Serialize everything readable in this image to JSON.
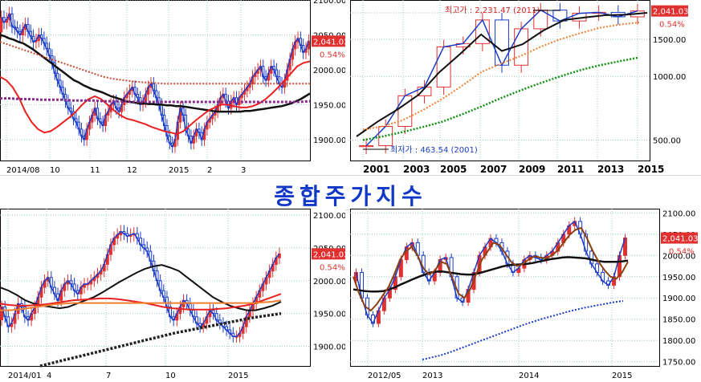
{
  "title": "종합주가지수",
  "colors": {
    "up": "#e03030",
    "down": "#1a3cc8",
    "grid": "#9ec9c9",
    "label_box": "#e03030",
    "label_text": "#ffffff",
    "pct_text": "#e03030",
    "ma_red": "#e82020",
    "ma_black": "#111111",
    "ma_orange": "#f08030",
    "ma_green": "#109010",
    "ma_purple": "#882a8a",
    "ma_blue": "#1a3cc8",
    "ma_brown": "#8a4010",
    "ma_dotted_red": "#c84a30",
    "ma_dotted_black": "#222222"
  },
  "chart_data": [
    {
      "id": "daily-recent",
      "type": "candlestick",
      "frequency": "daily",
      "x_ticks": [
        "2014/08",
        "10",
        "11",
        "12",
        "2015",
        "2",
        "3"
      ],
      "y_ticks": [
        "2100.00",
        "2050.00",
        "2000.00",
        "1950.00",
        "1900.00"
      ],
      "ylim": [
        1870,
        2100
      ],
      "last_value": "2,041.03",
      "change_pct": "0.54%",
      "series": [
        {
          "values": [
            2075,
            2068,
            2072,
            2080,
            2062,
            2060,
            2055,
            2050,
            2058,
            2065,
            2055,
            2048,
            2040,
            2042,
            2050,
            2045,
            2038,
            2030,
            2020,
            2010,
            1995,
            1985,
            1975,
            1965,
            1955,
            1945,
            1940,
            1930,
            1925,
            1915,
            1905,
            1900,
            1915,
            1925,
            1935,
            1945,
            1930,
            1925,
            1920,
            1935,
            1940,
            1950,
            1955,
            1945,
            1940,
            1950,
            1960,
            1965,
            1970,
            1975,
            1965,
            1960,
            1950,
            1955,
            1965,
            1975,
            1980,
            1970,
            1960,
            1950,
            1935,
            1920,
            1905,
            1895,
            1890,
            1900,
            1925,
            1945,
            1935,
            1915,
            1905,
            1895,
            1905,
            1915,
            1910,
            1900,
            1915,
            1925,
            1930,
            1935,
            1940,
            1950,
            1960,
            1965,
            1955,
            1945,
            1955,
            1960,
            1950,
            1960,
            1965,
            1970,
            1975,
            1980,
            1990,
            1995,
            2000,
            2005,
            1990,
            1985,
            1995,
            2005,
            2000,
            1990,
            1980,
            1975,
            1985,
            2000,
            2015,
            2030,
            2040,
            2045,
            2035,
            2025,
            2030,
            2041
          ]
        },
        {
          "values": [
            2050,
            2048,
            2045,
            2043,
            2040,
            2038,
            2034,
            2030,
            2025,
            2020,
            2015,
            2010,
            2005,
            2000,
            1995,
            1990,
            1985,
            1982,
            1978,
            1975,
            1972,
            1970,
            1968,
            1965,
            1962,
            1960,
            1958,
            1955,
            1954,
            1953,
            1952,
            1952,
            1951,
            1951,
            1950,
            1950,
            1949,
            1949,
            1948,
            1948,
            1947,
            1946,
            1945,
            1944,
            1943,
            1942,
            1941,
            1940,
            1940,
            1940,
            1940,
            1940,
            1940,
            1941,
            1941,
            1942,
            1943,
            1944,
            1945,
            1946,
            1947,
            1948,
            1950,
            1952,
            1955,
            1958,
            1962,
            1966
          ]
        },
        {
          "values": [
            1990,
            1985,
            1975,
            1960,
            1940,
            1925,
            1915,
            1910,
            1912,
            1918,
            1925,
            1932,
            1940,
            1950,
            1958,
            1962,
            1958,
            1950,
            1942,
            1935,
            1930,
            1928,
            1925,
            1922,
            1918,
            1915,
            1912,
            1910,
            1908,
            1912,
            1920,
            1928,
            1935,
            1942,
            1946,
            1950,
            1950,
            1948,
            1946,
            1946,
            1948,
            1952,
            1958,
            1966,
            1975,
            1985,
            1995,
            2005,
            2010,
            2012
          ]
        },
        {
          "values": [
            2040,
            2035,
            2030,
            2025,
            2020,
            2015,
            2010,
            2005,
            2000,
            1995,
            1990,
            1987,
            1985,
            1983,
            1982,
            1981,
            1980,
            1980,
            1980,
            1980,
            1980,
            1980,
            1980,
            1980,
            1980,
            1980,
            1980,
            1980,
            1980,
            1980,
            1980
          ]
        },
        {
          "values": [
            1959,
            1959,
            1958,
            1958,
            1957,
            1957,
            1957,
            1956,
            1956,
            1956,
            1955,
            1955,
            1955,
            1954,
            1954,
            1954,
            1954,
            1954,
            1954,
            1954,
            1954,
            1954,
            1954,
            1954,
            1954,
            1954,
            1954,
            1954,
            1954,
            1954,
            1955
          ]
        }
      ]
    },
    {
      "id": "yearly",
      "type": "candlestick",
      "frequency": "yearly",
      "scale": "log",
      "x_ticks": [
        "2001",
        "2003",
        "2005",
        "2007",
        "2009",
        "2011",
        "2013",
        "2015"
      ],
      "y_ticks": [
        "2000.00",
        "1500.00",
        "1000.00",
        "500.00"
      ],
      "ylim": [
        400,
        2300
      ],
      "last_value": "2,041.03",
      "change_pct": "0.54%",
      "annotations": {
        "high": "최고가 : 2,231.47 (2011)",
        "low": "최저가 : 463.54 (2001)"
      },
      "series": [
        {
          "values": [
            470,
            580,
            810,
            890,
            1380,
            1430,
            1850,
            1130,
            1680,
            2060,
            1830,
            1990,
            2010,
            1915,
            2041
          ]
        },
        {
          "values": [
            520,
            610,
            700,
            820,
            1050,
            1280,
            1580,
            1320,
            1420,
            1650,
            1850,
            1900,
            1950,
            1960,
            2000
          ]
        },
        {
          "values": [
            560,
            580,
            620,
            690,
            780,
            900,
            1050,
            1150,
            1250,
            1380,
            1500,
            1600,
            1700,
            1760,
            1800
          ]
        },
        {
          "values": [
            500,
            520,
            545,
            575,
            610,
            660,
            720,
            790,
            860,
            930,
            1000,
            1070,
            1130,
            1180,
            1230
          ]
        }
      ]
    },
    {
      "id": "daily-long",
      "type": "candlestick",
      "frequency": "daily",
      "x_ticks": [
        "2014/01",
        "4",
        "7",
        "10",
        "2015"
      ],
      "y_ticks": [
        "2100.00",
        "2050.00",
        "2000.00",
        "1950.00",
        "1900.00"
      ],
      "ylim": [
        1870,
        2110
      ],
      "last_value": "2,041.03",
      "change_pct": "0.54%",
      "series": [
        {
          "values": [
            1960,
            1945,
            1930,
            1935,
            1950,
            1965,
            1960,
            1945,
            1940,
            1950,
            1960,
            1975,
            1990,
            2000,
            2005,
            1990,
            1980,
            1970,
            1985,
            1995,
            2000,
            1995,
            1985,
            1980,
            1990,
            1995,
            1995,
            2000,
            2005,
            2010,
            2015,
            2025,
            2040,
            2055,
            2065,
            2070,
            2075,
            2072,
            2068,
            2070,
            2072,
            2065,
            2055,
            2050,
            2045,
            2030,
            2015,
            2000,
            1985,
            1975,
            1960,
            1945,
            1940,
            1950,
            1960,
            1970,
            1965,
            1955,
            1945,
            1935,
            1930,
            1935,
            1945,
            1955,
            1950,
            1940,
            1935,
            1930,
            1925,
            1920,
            1915,
            1915,
            1920,
            1930,
            1945,
            1955,
            1965,
            1975,
            1985,
            1995,
            2005,
            2015,
            2025,
            2035,
            2041
          ]
        },
        {
          "values": [
            1990,
            1985,
            1978,
            1970,
            1965,
            1962,
            1960,
            1958,
            1960,
            1965,
            1970,
            1975,
            1982,
            1990,
            1998,
            2005,
            2012,
            2018,
            2022,
            2024,
            2020,
            2015,
            2005,
            1995,
            1985,
            1975,
            1968,
            1962,
            1958,
            1955,
            1955,
            1958,
            1962,
            1968
          ]
        },
        {
          "values": [
            1965,
            1963,
            1962,
            1962,
            1963,
            1964,
            1966,
            1968,
            1970,
            1971,
            1972,
            1973,
            1973,
            1972,
            1970,
            1968,
            1966,
            1963,
            1960,
            1958,
            1957,
            1956,
            1956,
            1956,
            1957,
            1958,
            1960,
            1962,
            1965,
            1970,
            1975,
            1980
          ]
        },
        {
          "values": [
            1955,
            1955,
            1956,
            1958,
            1960,
            1962,
            1964,
            1965,
            1966,
            1966,
            1966,
            1966,
            1966,
            1966,
            1966,
            1966,
            1966,
            1966,
            1966,
            1966,
            1966,
            1966,
            1966,
            1966,
            1966,
            1966,
            1966,
            1966,
            1966,
            1967,
            1968,
            1970
          ]
        },
        {
          "values": [
            1870,
            1875,
            1880,
            1885,
            1890,
            1895,
            1900,
            1905,
            1910,
            1915,
            1920,
            1924,
            1928,
            1932,
            1936,
            1940,
            1944,
            1947,
            1950
          ]
        }
      ]
    },
    {
      "id": "weekly",
      "type": "candlestick",
      "frequency": "weekly",
      "x_ticks": [
        "2012/05",
        "2013",
        "2014",
        "2015"
      ],
      "y_ticks": [
        "2100.00",
        "2050.00",
        "2000.00",
        "1950.00",
        "1900.00",
        "1850.00",
        "1800.00",
        "1750.00"
      ],
      "ylim": [
        1740,
        2110
      ],
      "last_value": "2,041.03",
      "change_pct": "0.54%",
      "series": [
        {
          "values": [
            1960,
            1900,
            1860,
            1840,
            1870,
            1900,
            1920,
            1950,
            1990,
            2020,
            2030,
            2000,
            1960,
            1940,
            1960,
            1990,
            1995,
            1950,
            1900,
            1890,
            1920,
            1960,
            2000,
            2020,
            2040,
            2030,
            2010,
            1980,
            1960,
            1970,
            1990,
            2000,
            1995,
            1990,
            2000,
            2010,
            2030,
            2050,
            2070,
            2080,
            2050,
            2010,
            1980,
            1960,
            1940,
            1930,
            1950,
            2000,
            2041
          ]
        },
        {
          "values": [
            1920,
            1918,
            1916,
            1915,
            1915,
            1916,
            1920,
            1925,
            1932,
            1938,
            1944,
            1950,
            1955,
            1960,
            1962,
            1962,
            1960,
            1958,
            1956,
            1955,
            1955,
            1958,
            1962,
            1966,
            1970,
            1974,
            1977,
            1978,
            1979,
            1980,
            1982,
            1985,
            1988,
            1991,
            1993,
            1995,
            1996,
            1995,
            1994,
            1993,
            1990,
            1987,
            1985,
            1985,
            1985,
            1986,
            1988
          ]
        },
        {
          "values": [
            1950,
            1910,
            1880,
            1870,
            1885,
            1905,
            1925,
            1955,
            1990,
            2010,
            2020,
            2000,
            1970,
            1955,
            1965,
            1985,
            1980,
            1945,
            1910,
            1900,
            1920,
            1955,
            1990,
            2010,
            2030,
            2025,
            2005,
            1985,
            1975,
            1980,
            1990,
            1998,
            1995,
            1993,
            2000,
            2012,
            2030,
            2048,
            2060,
            2065,
            2040,
            2010,
            1985,
            1965,
            1950,
            1945,
            1960,
            1985
          ]
        },
        {
          "values": [
            1755,
            1760,
            1765,
            1772,
            1780,
            1788,
            1796,
            1804,
            1812,
            1820,
            1828,
            1836,
            1843,
            1850,
            1856,
            1862,
            1868,
            1873,
            1878,
            1882,
            1886,
            1890,
            1893
          ]
        }
      ]
    }
  ]
}
